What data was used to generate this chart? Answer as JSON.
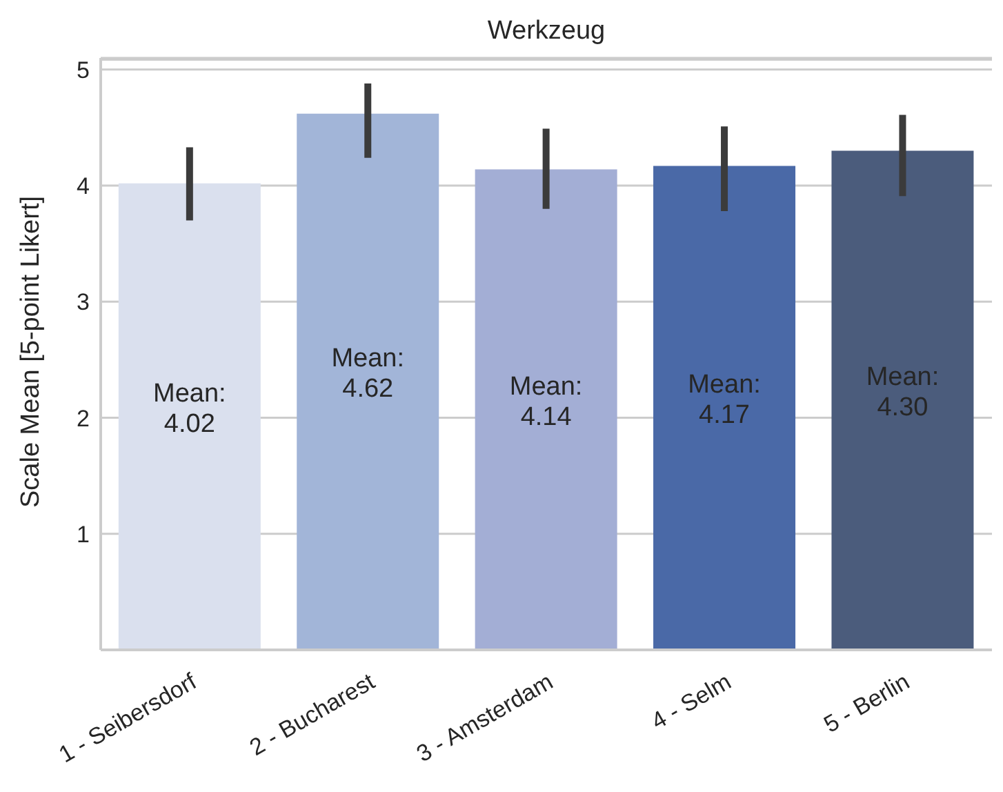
{
  "chart_data": {
    "type": "bar",
    "title": "Werkzeug",
    "ylabel": "Scale Mean [5-point Likert]",
    "categories": [
      "1 - Seibersdorf",
      "2 - Bucharest",
      "3 - Amsterdam",
      "4 - Selm",
      "5 - Berlin"
    ],
    "values": [
      4.02,
      4.62,
      4.14,
      4.17,
      4.3
    ],
    "colors": [
      "#dae0ee",
      "#a2b5d8",
      "#a3aed5",
      "#4a69a7",
      "#4b5c7c"
    ],
    "errors": [
      [
        3.7,
        4.33
      ],
      [
        4.24,
        4.88
      ],
      [
        3.8,
        4.49
      ],
      [
        3.78,
        4.51
      ],
      [
        3.91,
        4.61
      ]
    ],
    "value_labels": [
      "Mean:\n4.02",
      "Mean:\n4.62",
      "Mean:\n4.14",
      "Mean:\n4.17",
      "Mean:\n4.30"
    ],
    "ylim": [
      0,
      5.1
    ],
    "yticks": [
      1,
      2,
      3,
      4,
      5
    ],
    "grid": "y"
  }
}
